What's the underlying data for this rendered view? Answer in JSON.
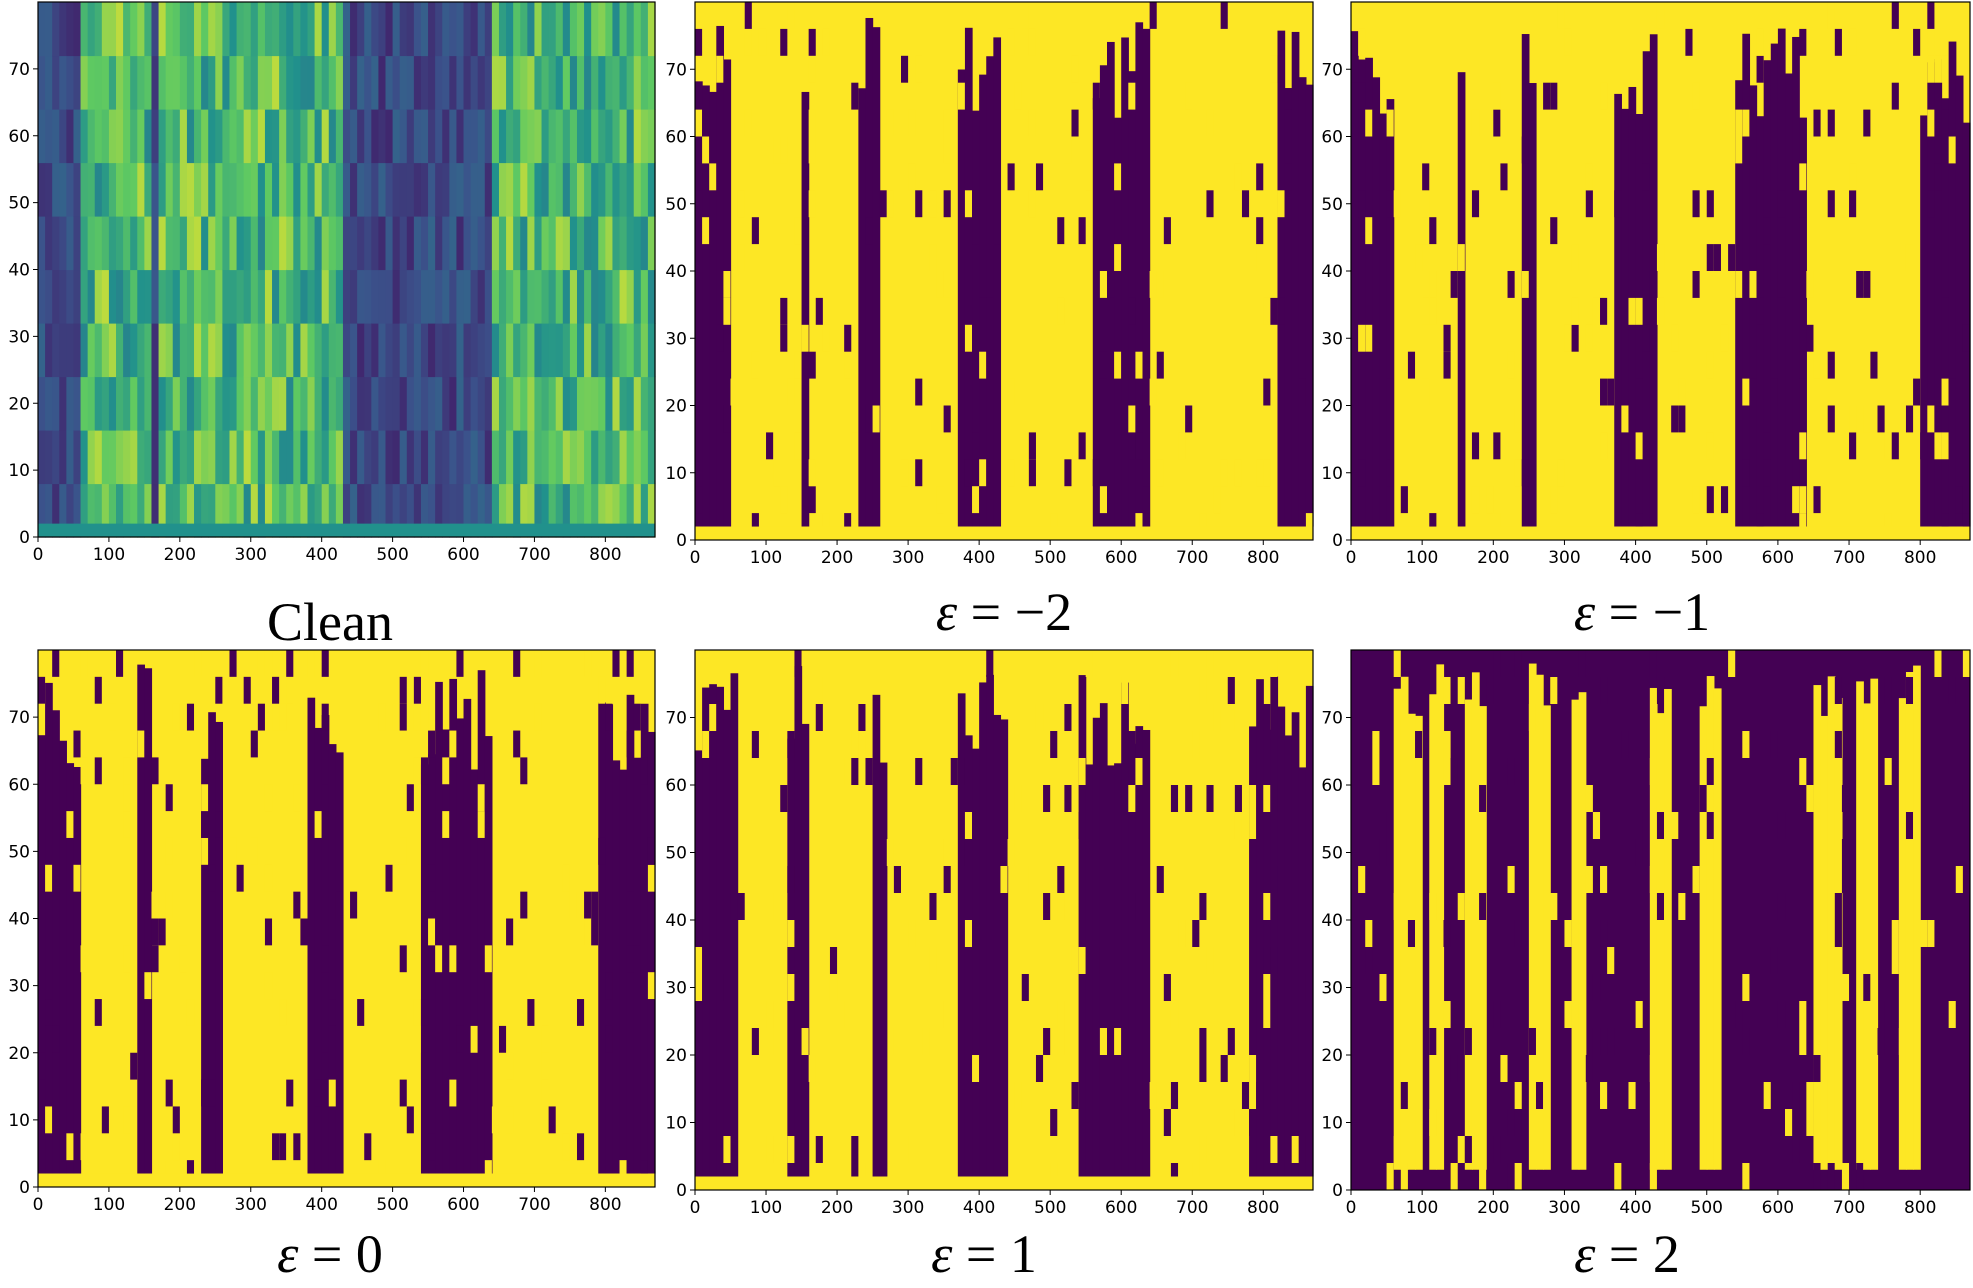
{
  "figure": {
    "colors": {
      "heatmap_low": "#440154",
      "heatmap_high": "#fde725",
      "viridis_mid": [
        "#3b528b",
        "#21918c",
        "#5ec962"
      ]
    }
  },
  "chart_data": [
    {
      "type": "heatmap",
      "caption": "Clean",
      "colormap": "viridis",
      "binary": false,
      "xlim": [
        0,
        870
      ],
      "ylim": [
        0,
        80
      ],
      "xticks": [
        0,
        100,
        200,
        300,
        400,
        500,
        600,
        700,
        800
      ],
      "yticks": [
        0,
        10,
        20,
        30,
        40,
        50,
        60,
        70
      ],
      "active_segments": [
        [
          60,
          160
        ],
        [
          175,
          260
        ],
        [
          260,
          435
        ],
        [
          645,
          870
        ]
      ],
      "grid": false
    },
    {
      "type": "heatmap",
      "caption_symbol": "ε",
      "caption_rest": " = −2",
      "colormap": "binary-viridis",
      "binary": true,
      "xlim": [
        0,
        870
      ],
      "ylim": [
        0,
        80
      ],
      "xticks": [
        0,
        100,
        200,
        300,
        400,
        500,
        600,
        700,
        800
      ],
      "yticks": [
        0,
        10,
        20,
        30,
        40,
        50,
        60,
        70
      ],
      "low_columns": [
        [
          0,
          55
        ],
        [
          150,
          160
        ],
        [
          230,
          260
        ],
        [
          370,
          430
        ],
        [
          560,
          640
        ],
        [
          820,
          870
        ]
      ],
      "grid": false
    },
    {
      "type": "heatmap",
      "caption_symbol": "ε",
      "caption_rest": " = −1",
      "colormap": "binary-viridis",
      "binary": true,
      "xlim": [
        0,
        870
      ],
      "ylim": [
        0,
        80
      ],
      "xticks": [
        0,
        100,
        200,
        300,
        400,
        500,
        600,
        700,
        800
      ],
      "yticks": [
        0,
        10,
        20,
        30,
        40,
        50,
        60,
        70
      ],
      "low_columns": [
        [
          0,
          60
        ],
        [
          150,
          165
        ],
        [
          240,
          260
        ],
        [
          370,
          435
        ],
        [
          540,
          640
        ],
        [
          800,
          870
        ]
      ],
      "grid": false
    },
    {
      "type": "heatmap",
      "caption_symbol": "ε",
      "caption_rest": " = 0",
      "colormap": "binary-viridis",
      "binary": true,
      "xlim": [
        0,
        870
      ],
      "ylim": [
        0,
        80
      ],
      "xticks": [
        0,
        100,
        200,
        300,
        400,
        500,
        600,
        700,
        800
      ],
      "yticks": [
        0,
        10,
        20,
        30,
        40,
        50,
        60,
        70
      ],
      "low_columns": [
        [
          0,
          60
        ],
        [
          140,
          160
        ],
        [
          230,
          260
        ],
        [
          380,
          435
        ],
        [
          545,
          640
        ],
        [
          790,
          870
        ]
      ],
      "grid": false
    },
    {
      "type": "heatmap",
      "caption_symbol": "ε",
      "caption_rest": " = 1",
      "colormap": "binary-viridis",
      "binary": true,
      "xlim": [
        0,
        870
      ],
      "ylim": [
        0,
        80
      ],
      "xticks": [
        0,
        100,
        200,
        300,
        400,
        500,
        600,
        700,
        800
      ],
      "yticks": [
        0,
        10,
        20,
        30,
        40,
        50,
        60,
        70
      ],
      "low_columns": [
        [
          0,
          60
        ],
        [
          130,
          160
        ],
        [
          250,
          270
        ],
        [
          370,
          440
        ],
        [
          540,
          640
        ],
        [
          780,
          870
        ]
      ],
      "grid": false
    },
    {
      "type": "heatmap",
      "caption_symbol": "ε",
      "caption_rest": " = 2",
      "colormap": "binary-viridis",
      "binary": true,
      "xlim": [
        0,
        870
      ],
      "ylim": [
        0,
        80
      ],
      "xticks": [
        0,
        100,
        200,
        300,
        400,
        500,
        600,
        700,
        800
      ],
      "yticks": [
        0,
        10,
        20,
        30,
        40,
        50,
        60,
        70
      ],
      "high_columns": [
        [
          60,
          100
        ],
        [
          110,
          130
        ],
        [
          165,
          195
        ],
        [
          250,
          280
        ],
        [
          310,
          330
        ],
        [
          420,
          450
        ],
        [
          490,
          520
        ],
        [
          650,
          690
        ],
        [
          710,
          740
        ],
        [
          770,
          800
        ]
      ],
      "grid": false
    }
  ]
}
